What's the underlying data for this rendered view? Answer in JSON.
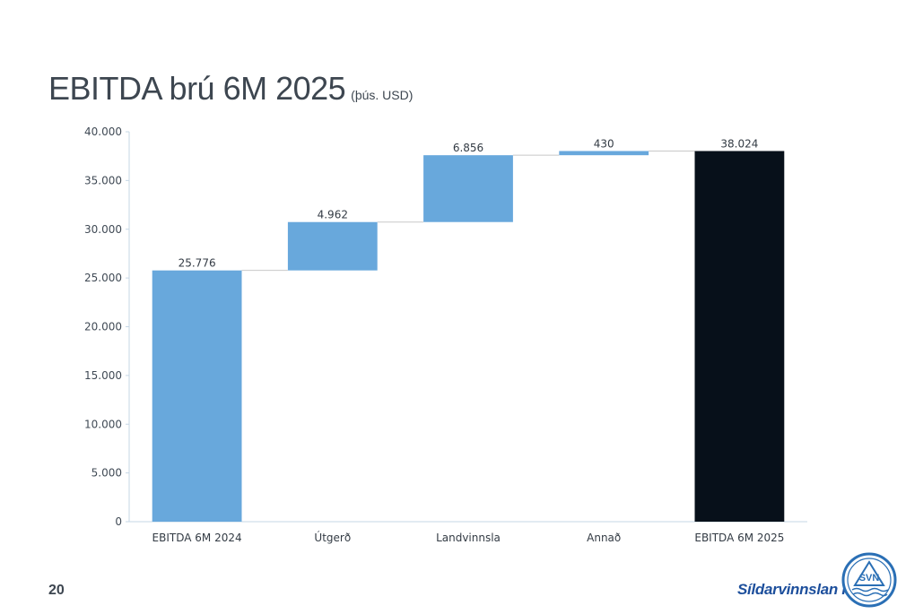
{
  "slide": {
    "title": "EBITDA brú 6M 2025",
    "subtitle": "(þús. USD)",
    "page_number": "20",
    "brand_name": "Síldarvinnslan hf",
    "logo_text": "SVN"
  },
  "colors": {
    "bar_blue": "#68a8dc",
    "bar_dark": "#07101a",
    "connector": "#c8c8c8",
    "logo_blue": "#2a6fb5"
  },
  "chart_data": {
    "type": "bar",
    "subtype": "waterfall",
    "categories": [
      "EBITDA 6M 2024",
      "Útgerð",
      "Landvinnsla",
      "Annað",
      "EBITDA 6M 2025"
    ],
    "values": [
      25776,
      4962,
      6856,
      430,
      38024
    ],
    "value_labels": [
      "25.776",
      "4.962",
      "6.856",
      "430",
      "38.024"
    ],
    "bar_roles": [
      "total",
      "increase",
      "increase",
      "increase",
      "total"
    ],
    "ylim": [
      0,
      40000
    ],
    "yticks": [
      0,
      5000,
      10000,
      15000,
      20000,
      25000,
      30000,
      35000,
      40000
    ],
    "ytick_labels": [
      "0",
      "5.000",
      "10.000",
      "15.000",
      "20.000",
      "25.000",
      "30.000",
      "35.000",
      "40.000"
    ],
    "grid": false,
    "legend": "none"
  }
}
